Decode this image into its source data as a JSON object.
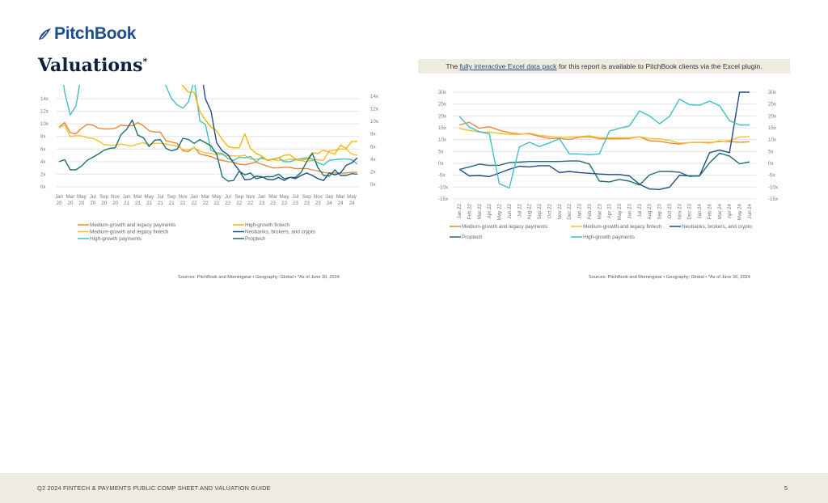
{
  "header": {
    "logo_text": "PitchBook",
    "page_title": "Valuations",
    "title_mark": "*"
  },
  "banner": {
    "prefix": "The ",
    "link_text": "fully interactive Excel data pack",
    "suffix": " for this report is available to PitchBook clients via the Excel plugin."
  },
  "sources_left": "Sources: PitchBook and Morningstar  •  Geography: Global  •  *As of June 30, 2024",
  "sources_right": "Sources: PitchBook and Morningstar  •  Geography: Global  •  *As of June 30, 2024",
  "footer": {
    "title": "Q2 2024 FINTECH & PAYMENTS PUBLIC COMP SHEET AND VALUATION GUIDE",
    "page_number": "5"
  },
  "colors": {
    "medium_payments": "#e8883a",
    "medium_fintech": "#f2c12e",
    "high_payments": "#3ec1c9",
    "high_fintech": "#f5b800",
    "neobanks": "#1f4e85",
    "proptech": "#1f6e72",
    "grid": "#e4e4e4"
  },
  "chart_data": [
    {
      "type": "line",
      "title": "",
      "xlabel": "",
      "ylabel": "",
      "ylim": [
        0,
        14
      ],
      "y2lim": [
        0,
        14
      ],
      "yticks": [
        "0x",
        "2x",
        "4x",
        "6x",
        "8x",
        "10x",
        "12x",
        "14x"
      ],
      "y2ticks": [
        "0x",
        "2x",
        "4x",
        "6x",
        "8x",
        "10x",
        "12x",
        "14x"
      ],
      "grid": true,
      "legend": "bottom",
      "x_tick_labels": [
        [
          "Jan",
          "20"
        ],
        [
          "Mar",
          "20"
        ],
        [
          "May",
          "20"
        ],
        [
          "Jul",
          "20"
        ],
        [
          "Sep",
          "20"
        ],
        [
          "Nov",
          "20"
        ],
        [
          "Jan",
          "21"
        ],
        [
          "Mar",
          "21"
        ],
        [
          "May",
          "21"
        ],
        [
          "Jul",
          "21"
        ],
        [
          "Sep",
          "21"
        ],
        [
          "Nov",
          "21"
        ],
        [
          "Jan",
          "22"
        ],
        [
          "Mar",
          "22"
        ],
        [
          "May",
          "22"
        ],
        [
          "Jul",
          "22"
        ],
        [
          "Sep",
          "22"
        ],
        [
          "Nov",
          "22"
        ],
        [
          "Jan",
          "23"
        ],
        [
          "Mar",
          "23"
        ],
        [
          "May",
          "23"
        ],
        [
          "Jul",
          "23"
        ],
        [
          "Sep",
          "23"
        ],
        [
          "Nov",
          "23"
        ],
        [
          "Jan",
          "24"
        ],
        [
          "Mar",
          "24"
        ],
        [
          "May",
          "24"
        ]
      ],
      "n_points": 54,
      "series": [
        {
          "name": "Medium-growth and legacy payments",
          "color_key": "medium_payments",
          "axis": "left",
          "values": [
            9.5,
            10.2,
            8.6,
            8.4,
            9.3,
            9.9,
            9.8,
            9.3,
            9.2,
            9.2,
            9.3,
            9.8,
            9.7,
            9.7,
            10.2,
            9.7,
            8.9,
            8.7,
            8.7,
            7.3,
            7.1,
            6.9,
            5.7,
            5.6,
            6.3,
            5.2,
            5.0,
            4.8,
            4.4,
            4.2,
            4.0,
            3.9,
            3.6,
            3.5,
            3.7,
            3.9,
            3.6,
            3.3,
            3.0,
            3.0,
            3.1,
            3.1,
            2.9,
            2.9,
            2.9,
            2.7,
            2.5,
            2.3,
            2.2,
            2.2,
            2.2,
            2.2,
            2.3,
            2.3
          ]
        },
        {
          "name": "Medium-growth and legacy fintech",
          "color_key": "medium_fintech",
          "axis": "left",
          "values": [
            9.4,
            9.8,
            8.0,
            8.1,
            8.1,
            7.8,
            7.7,
            7.3,
            6.7,
            6.6,
            6.6,
            6.8,
            6.6,
            6.5,
            6.8,
            7.0,
            6.7,
            6.9,
            6.9,
            6.8,
            6.6,
            6.5,
            5.9,
            5.9,
            6.2,
            5.7,
            5.4,
            5.3,
            5.1,
            5.1,
            4.9,
            4.9,
            4.9,
            5.0,
            4.4,
            4.4,
            4.5,
            4.3,
            4.3,
            4.2,
            4.2,
            4.4,
            4.3,
            4.2,
            4.0,
            4.2,
            4.3,
            4.2,
            5.7,
            5.8,
            6.0,
            6.0,
            5.2,
            5.0
          ]
        },
        {
          "name": "High-growth payments",
          "color_key": "high_payments",
          "axis": "left",
          "values": [
            22,
            15.0,
            11.4,
            12.8,
            18.0,
            24,
            26,
            25,
            24,
            23,
            22,
            22,
            22,
            22,
            22,
            22,
            22,
            20,
            18,
            16,
            14,
            13,
            12.5,
            13.5,
            17.0,
            10.5,
            9.9,
            5.8,
            5.4,
            5.3,
            4.5,
            4.2,
            4.7,
            4.6,
            4.8,
            4.0,
            4.7,
            4.2,
            4.4,
            4.6,
            4.0,
            4.0,
            4.3,
            4.5,
            4.6,
            4.4,
            3.8,
            3.5,
            4.2,
            4.3,
            4.4,
            4.4,
            4.3,
            3.6
          ]
        },
        {
          "name": "High-growth fintech",
          "color_key": "high_fintech",
          "axis": "right",
          "values": [
            25,
            25,
            25,
            25,
            25,
            25,
            25,
            25,
            25,
            25,
            25,
            25,
            25,
            25,
            25,
            25,
            25,
            24,
            22,
            20,
            18,
            17,
            16,
            15,
            15,
            12.0,
            10.6,
            9.5,
            8.9,
            7.5,
            6.4,
            6.2,
            6.2,
            8.4,
            6.1,
            5.3,
            4.9,
            4.2,
            4.3,
            4.6,
            5.0,
            5.1,
            4.4,
            4.2,
            4.4,
            5.4,
            5.3,
            5.8,
            5.5,
            5.2,
            6.6,
            6.1,
            7.2,
            7.2
          ]
        },
        {
          "name": "Neobanks, brokers, and crypto",
          "color_key": "neobanks",
          "axis": "left",
          "values": [
            20,
            20,
            20,
            20,
            20,
            20,
            20,
            20,
            20,
            20,
            20,
            20,
            20,
            20,
            20,
            20,
            20,
            20,
            20,
            20,
            20,
            20,
            20,
            20,
            20,
            20,
            14.0,
            12.0,
            7.0,
            5.7,
            5.1,
            3.8,
            2.6,
            1.1,
            1.2,
            1.7,
            1.6,
            1.2,
            1.1,
            1.5,
            1.0,
            1.5,
            1.3,
            1.8,
            2.2,
            1.8,
            1.3,
            1.0,
            2.2,
            1.9,
            2.2,
            3.4,
            3.8,
            4.6
          ]
        },
        {
          "name": "Proptech",
          "color_key": "proptech",
          "axis": "left",
          "values": [
            4.0,
            4.3,
            2.7,
            2.7,
            3.3,
            4.2,
            4.7,
            5.2,
            5.8,
            6.1,
            6.2,
            8.3,
            9.1,
            10.6,
            8.2,
            7.8,
            6.4,
            7.4,
            7.5,
            6.1,
            5.7,
            6.0,
            7.7,
            7.5,
            6.9,
            7.5,
            7.0,
            6.5,
            5.2,
            1.6,
            0.9,
            1.0,
            2.5,
            1.9,
            2.2,
            1.3,
            1.5,
            1.6,
            1.6,
            2.0,
            1.3,
            1.5,
            1.5,
            2.3,
            4.0,
            5.3,
            3.0,
            1.8,
            1.7,
            2.7,
            1.8,
            1.8,
            2.1,
            2.0
          ]
        }
      ]
    },
    {
      "type": "line",
      "title": "",
      "xlabel": "",
      "ylabel": "",
      "ylim": [
        -15,
        30
      ],
      "y2lim": [
        -15,
        30
      ],
      "yticks": [
        "-15x",
        "-10x",
        "-5x",
        "0x",
        "5x",
        "10x",
        "15x",
        "20x",
        "25x",
        "30x"
      ],
      "y2ticks": [
        "-15x",
        "-10x",
        "-5x",
        "0x",
        "5x",
        "10x",
        "15x",
        "20x",
        "25x",
        "30x"
      ],
      "grid": true,
      "legend": "bottom",
      "categories": [
        "Jan 22",
        "Feb 22",
        "Mar 22",
        "Apr 22",
        "May 22",
        "Jun 22",
        "Jul 22",
        "Aug 22",
        "Sep 22",
        "Oct 22",
        "Nov 22",
        "Dec 22",
        "Jan 23",
        "Feb 23",
        "Mar 23",
        "Apr 23",
        "May 23",
        "Jun 23",
        "Jul 23",
        "Aug 23",
        "Sep 23",
        "Oct 23",
        "Nov 23",
        "Dec 23",
        "Jan 24",
        "Feb 24",
        "Mar 24",
        "Apr 24",
        "May 24",
        "Jun 24"
      ],
      "series": [
        {
          "name": "Medium-growth and legacy payments",
          "color_key": "medium_payments",
          "values": [
            16.2,
            17.3,
            14.8,
            15.4,
            14.0,
            12.9,
            12.4,
            12.4,
            11.4,
            10.5,
            10.5,
            10.1,
            11.0,
            11.2,
            10.4,
            10.4,
            10.4,
            10.5,
            11.2,
            9.5,
            9.3,
            8.6,
            8.1,
            8.8,
            8.9,
            8.6,
            9.4,
            9.2,
            8.9,
            9.1
          ]
        },
        {
          "name": "Medium-growth and legacy fintech",
          "color_key": "medium_fintech",
          "values": [
            14.7,
            13.9,
            13.2,
            13.2,
            12.6,
            12.2,
            12.2,
            12.7,
            11.8,
            11.4,
            11.0,
            11.1,
            11.3,
            11.6,
            10.8,
            10.8,
            10.8,
            10.8,
            11.2,
            10.5,
            10.3,
            9.7,
            8.5,
            8.8,
            8.9,
            8.9,
            9.1,
            9.6,
            11.1,
            11.3
          ]
        },
        {
          "name": "Neobanks, brokers, and crypto",
          "color_key": "neobanks",
          "values": [
            -2.5,
            -5.3,
            -5.1,
            -5.6,
            -4.1,
            -2.5,
            -1.2,
            -1.5,
            -1.0,
            -1.0,
            -3.9,
            -3.4,
            -3.9,
            -4.2,
            -4.5,
            -4.7,
            -4.7,
            -5.3,
            -8.8,
            -10.8,
            -11.0,
            -10.1,
            -5.0,
            -5.3,
            -5.3,
            4.5,
            5.6,
            4.5,
            30.0,
            30.0
          ]
        },
        {
          "name": "Proptech",
          "color_key": "proptech",
          "values": [
            -2.6,
            -1.5,
            -0.3,
            -0.9,
            -0.8,
            0.3,
            0.5,
            0.8,
            0.8,
            0.8,
            0.8,
            1.0,
            1.0,
            -0.3,
            -7.5,
            -7.8,
            -6.8,
            -7.5,
            -9.1,
            -4.9,
            -3.4,
            -3.4,
            -3.7,
            -5.5,
            -5.3,
            0.2,
            4.3,
            3.1,
            -0.2,
            0.6
          ]
        },
        {
          "name": "High-growth payments",
          "color_key": "high_payments",
          "values": [
            19.8,
            15.3,
            13.3,
            12.5,
            -8.6,
            -10.4,
            6.9,
            8.9,
            7.1,
            8.6,
            10.4,
            4.0,
            4.0,
            3.6,
            4.0,
            13.6,
            14.8,
            15.8,
            22.1,
            20.0,
            16.7,
            19.8,
            27.1,
            24.7,
            24.5,
            26.2,
            24.3,
            18.0,
            16.2,
            16.2
          ]
        }
      ]
    }
  ]
}
